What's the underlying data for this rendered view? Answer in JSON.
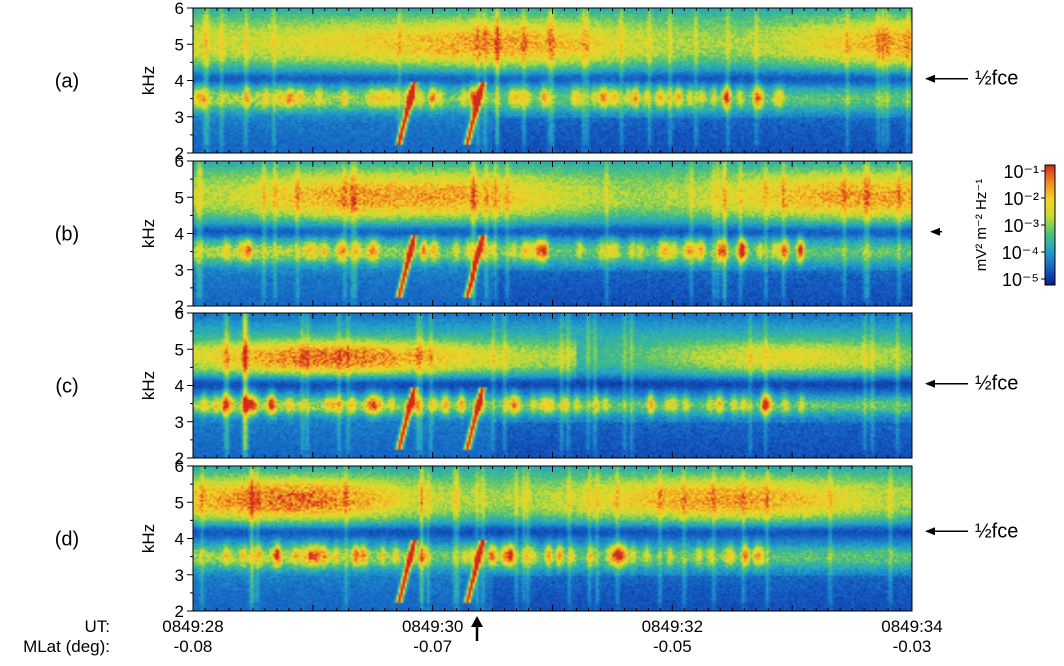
{
  "chart_data": {
    "type": "heatmap",
    "ylabel": "kHz",
    "ylim": [
      2,
      6
    ],
    "yticks": [
      2,
      3,
      4,
      5,
      6
    ],
    "x": {
      "ut_label": "UT:",
      "mlat_label": "MLat (deg):",
      "ticks": [
        {
          "ut": "0849:28",
          "mlat": "-0.08"
        },
        {
          "ut": "0849:30",
          "mlat": "-0.07"
        },
        {
          "ut": "0849:32",
          "mlat": "-0.05"
        },
        {
          "ut": "0849:34",
          "mlat": "-0.03"
        }
      ],
      "range_seconds": [
        28,
        34
      ]
    },
    "colorbar": {
      "label": "mV² m⁻² Hz⁻¹",
      "ticks": [
        "10⁻¹",
        "10⁻²",
        "10⁻³",
        "10⁻⁴",
        "10⁻⁵"
      ],
      "range_log10": [
        -5,
        -1
      ],
      "colors": [
        "#0a1f8f",
        "#1561c4",
        "#22a2c9",
        "#4cc27a",
        "#c7dc33",
        "#f5d327",
        "#f08a22",
        "#d22a1c"
      ]
    },
    "panels": [
      {
        "label": "(a)",
        "marker_label": "½fce",
        "marker_khz": 4.05,
        "band_khz": [
          4.5,
          5.5
        ],
        "lower_band_khz": [
          3.3,
          3.7
        ],
        "risers_seconds": [
          29.78,
          30.35
        ]
      },
      {
        "label": "(b)",
        "marker_label": "",
        "marker_khz": 4.05,
        "band_khz": [
          4.5,
          5.5
        ],
        "lower_band_khz": [
          3.3,
          3.7
        ],
        "risers_seconds": [
          29.78,
          30.35
        ]
      },
      {
        "label": "(c)",
        "marker_label": "½fce",
        "marker_khz": 4.05,
        "band_khz": [
          4.4,
          5.1
        ],
        "lower_band_khz": [
          3.3,
          3.6
        ],
        "risers_seconds": [
          29.78,
          30.35
        ]
      },
      {
        "label": "(d)",
        "marker_label": "½fce",
        "marker_khz": 4.2,
        "band_khz": [
          4.6,
          5.5
        ],
        "lower_band_khz": [
          3.3,
          3.7
        ],
        "risers_seconds": [
          29.78,
          30.35
        ]
      }
    ],
    "event_arrow_seconds": [
      30.37
    ],
    "legend": "right"
  }
}
